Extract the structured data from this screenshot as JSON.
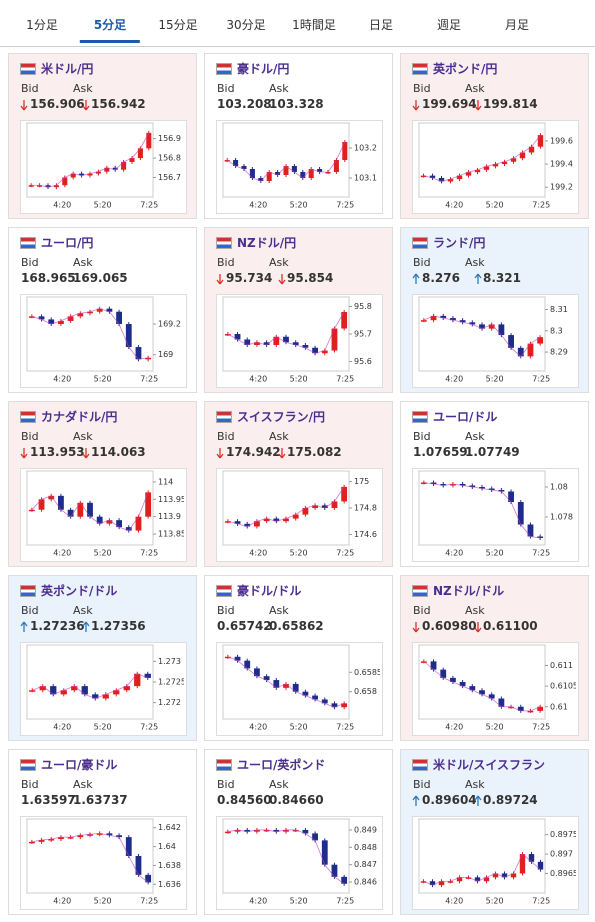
{
  "tabs": {
    "items": [
      "1分足",
      "5分足",
      "15分足",
      "30分足",
      "1時間足",
      "日足",
      "週足",
      "月足"
    ],
    "active": 1
  },
  "labels": {
    "bid": "Bid",
    "ask": "Ask"
  },
  "xlabels": [
    "4:20",
    "5:20",
    "7:25"
  ],
  "panels": [
    {
      "name": "米ドル/円",
      "bid": "156.906",
      "ask": "156.942",
      "trend": "down",
      "ylim": [
        156.62,
        156.96
      ],
      "yticks": [
        156.9,
        156.8,
        156.7
      ],
      "closes": [
        156.66,
        156.66,
        156.65,
        156.66,
        156.7,
        156.72,
        156.71,
        156.72,
        156.73,
        156.75,
        156.74,
        156.78,
        156.8,
        156.85,
        156.93
      ]
    },
    {
      "name": "豪ドル/円",
      "bid": "103.208",
      "ask": "103.328",
      "trend": null,
      "ylim": [
        103.05,
        103.27
      ],
      "yticks": [
        103.2,
        103.1
      ],
      "closes": [
        103.16,
        103.14,
        103.13,
        103.1,
        103.09,
        103.12,
        103.11,
        103.14,
        103.12,
        103.1,
        103.13,
        103.12,
        103.12,
        103.16,
        103.22
      ]
    },
    {
      "name": "英ポンド/円",
      "bid": "199.694",
      "ask": "199.814",
      "trend": "down",
      "ylim": [
        199.15,
        199.72
      ],
      "yticks": [
        199.6,
        199.4,
        199.2
      ],
      "closes": [
        199.3,
        199.28,
        199.25,
        199.27,
        199.3,
        199.33,
        199.35,
        199.38,
        199.4,
        199.42,
        199.45,
        199.5,
        199.55,
        199.65
      ]
    },
    {
      "name": "ユーロ/円",
      "bid": "168.965",
      "ask": "169.065",
      "trend": null,
      "ylim": [
        168.92,
        169.35
      ],
      "yticks": [
        169.2,
        169
      ],
      "closes": [
        169.25,
        169.23,
        169.2,
        169.22,
        169.25,
        169.27,
        169.28,
        169.3,
        169.28,
        169.2,
        169.05,
        168.97,
        168.98
      ]
    },
    {
      "name": "NZドル/円",
      "bid": "95.734",
      "ask": "95.854",
      "trend": "down",
      "ylim": [
        95.58,
        95.82
      ],
      "yticks": [
        95.8,
        95.7,
        95.6
      ],
      "closes": [
        95.7,
        95.68,
        95.66,
        95.67,
        95.66,
        95.69,
        95.67,
        95.66,
        95.65,
        95.63,
        95.64,
        95.72,
        95.78
      ]
    },
    {
      "name": "ランド/円",
      "bid": "8.276",
      "ask": "8.321",
      "trend": "up",
      "ylim": [
        8.283,
        8.314
      ],
      "yticks": [
        8.31,
        8.3,
        8.29
      ],
      "closes": [
        8.305,
        8.307,
        8.306,
        8.305,
        8.304,
        8.303,
        8.301,
        8.303,
        8.298,
        8.292,
        8.288,
        8.294,
        8.297
      ]
    },
    {
      "name": "カナダドル/円",
      "bid": "113.953",
      "ask": "114.063",
      "trend": "down",
      "ylim": [
        113.83,
        114.02
      ],
      "yticks": [
        114,
        113.95,
        113.9,
        113.85
      ],
      "closes": [
        113.92,
        113.95,
        113.96,
        113.92,
        113.9,
        113.94,
        113.9,
        113.88,
        113.89,
        113.87,
        113.86,
        113.9,
        113.97
      ]
    },
    {
      "name": "スイスフラン/円",
      "bid": "174.942",
      "ask": "175.082",
      "trend": "down",
      "ylim": [
        174.55,
        175.05
      ],
      "yticks": [
        175,
        174.8,
        174.6
      ],
      "closes": [
        174.7,
        174.68,
        174.66,
        174.7,
        174.72,
        174.7,
        174.72,
        174.75,
        174.8,
        174.82,
        174.8,
        174.85,
        174.96
      ]
    },
    {
      "name": "ユーロ/ドル",
      "bid": "1.07659",
      "ask": "1.07749",
      "trend": null,
      "ylim": [
        1.0764,
        1.0808
      ],
      "yticks": [
        1.08,
        1.078
      ],
      "closes": [
        1.0803,
        1.0802,
        1.0801,
        1.0802,
        1.0801,
        1.08,
        1.0799,
        1.0798,
        1.0797,
        1.079,
        1.0775,
        1.0767,
        1.0766
      ]
    },
    {
      "name": "英ポンド/ドル",
      "bid": "1.27236",
      "ask": "1.27356",
      "trend": "up",
      "ylim": [
        1.2717,
        1.2733
      ],
      "yticks": [
        1.273,
        1.2725,
        1.272
      ],
      "closes": [
        1.2723,
        1.2724,
        1.2722,
        1.2723,
        1.2724,
        1.2722,
        1.2721,
        1.2722,
        1.2723,
        1.2724,
        1.2727,
        1.2726
      ]
    },
    {
      "name": "豪ドル/ドル",
      "bid": "0.65742",
      "ask": "0.65862",
      "trend": null,
      "ylim": [
        0.6574,
        0.6591
      ],
      "yticks": [
        0.6585,
        0.658
      ],
      "closes": [
        0.6589,
        0.6588,
        0.6586,
        0.6584,
        0.6583,
        0.6581,
        0.6582,
        0.658,
        0.6579,
        0.6578,
        0.6577,
        0.6576,
        0.6577
      ]
    },
    {
      "name": "NZドル/ドル",
      "bid": "0.60980",
      "ask": "0.61100",
      "trend": "down",
      "ylim": [
        0.6098,
        0.6114
      ],
      "yticks": [
        0.611,
        0.6105,
        0.61
      ],
      "closes": [
        0.6111,
        0.6109,
        0.6107,
        0.6106,
        0.6105,
        0.6104,
        0.6103,
        0.6102,
        0.61,
        0.61,
        0.6099,
        0.6099,
        0.61
      ]
    },
    {
      "name": "ユーロ/豪ドル",
      "bid": "1.63597",
      "ask": "1.63737",
      "trend": null,
      "ylim": [
        1.6355,
        1.6425
      ],
      "yticks": [
        1.642,
        1.64,
        1.638,
        1.636
      ],
      "closes": [
        1.6405,
        1.6407,
        1.6408,
        1.641,
        1.641,
        1.6412,
        1.6413,
        1.6414,
        1.6412,
        1.641,
        1.639,
        1.637,
        1.6362
      ]
    },
    {
      "name": "ユーロ/英ポンド",
      "bid": "0.84560",
      "ask": "0.84660",
      "trend": null,
      "ylim": [
        0.8456,
        0.8494
      ],
      "yticks": [
        0.849,
        0.848,
        0.847,
        0.846
      ],
      "closes": [
        0.8489,
        0.849,
        0.8489,
        0.849,
        0.849,
        0.8489,
        0.849,
        0.849,
        0.8488,
        0.8484,
        0.847,
        0.8463,
        0.8459
      ]
    },
    {
      "name": "米ドル/スイスフラン",
      "bid": "0.89604",
      "ask": "0.89724",
      "trend": "up",
      "ylim": [
        0.8961,
        0.8978
      ],
      "yticks": [
        0.8975,
        0.897,
        0.8965
      ],
      "closes": [
        0.8963,
        0.8962,
        0.8963,
        0.8963,
        0.8964,
        0.8964,
        0.8963,
        0.8964,
        0.8965,
        0.8964,
        0.8965,
        0.897,
        0.8968,
        0.8966
      ]
    }
  ]
}
